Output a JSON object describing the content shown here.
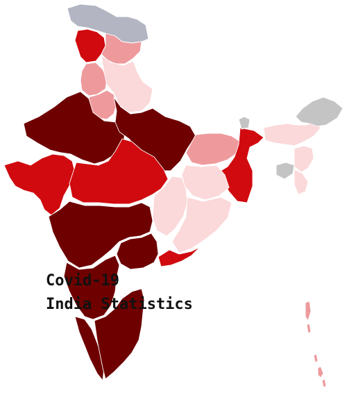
{
  "caption": {
    "line1": "Covid-19",
    "line2": "India Statistics"
  },
  "colors": {
    "very_high": "#6e0000",
    "high": "#d00a0f",
    "medium": "#ee9a9d",
    "low": "#fbd8d9",
    "no_data": "#b3b5c3",
    "grey": "#c4c4c4"
  },
  "regions": [
    {
      "id": "ladakh",
      "level": "no_data"
    },
    {
      "id": "jammu-kashmir",
      "level": "high"
    },
    {
      "id": "himachal-pradesh",
      "level": "medium"
    },
    {
      "id": "punjab",
      "level": "medium"
    },
    {
      "id": "haryana",
      "level": "medium"
    },
    {
      "id": "uttarakhand",
      "level": "low"
    },
    {
      "id": "uttar-pradesh",
      "level": "very_high"
    },
    {
      "id": "rajasthan",
      "level": "very_high"
    },
    {
      "id": "gujarat",
      "level": "high"
    },
    {
      "id": "madhya-pradesh",
      "level": "high"
    },
    {
      "id": "bihar",
      "level": "medium"
    },
    {
      "id": "west-bengal",
      "level": "high"
    },
    {
      "id": "jharkhand",
      "level": "low"
    },
    {
      "id": "chhattisgarh",
      "level": "low"
    },
    {
      "id": "odisha",
      "level": "low"
    },
    {
      "id": "maharashtra",
      "level": "very_high"
    },
    {
      "id": "telangana",
      "level": "very_high"
    },
    {
      "id": "andhra-pradesh",
      "level": "high"
    },
    {
      "id": "karnataka",
      "level": "very_high"
    },
    {
      "id": "kerala",
      "level": "very_high"
    },
    {
      "id": "tamil-nadu",
      "level": "very_high"
    },
    {
      "id": "sikkim",
      "level": "grey"
    },
    {
      "id": "assam",
      "level": "low"
    },
    {
      "id": "arunachal-pradesh",
      "level": "grey"
    },
    {
      "id": "meghalaya",
      "level": "grey"
    },
    {
      "id": "tripura",
      "level": "low"
    },
    {
      "id": "mizoram",
      "level": "low"
    },
    {
      "id": "andaman-nicobar",
      "level": "medium"
    }
  ]
}
